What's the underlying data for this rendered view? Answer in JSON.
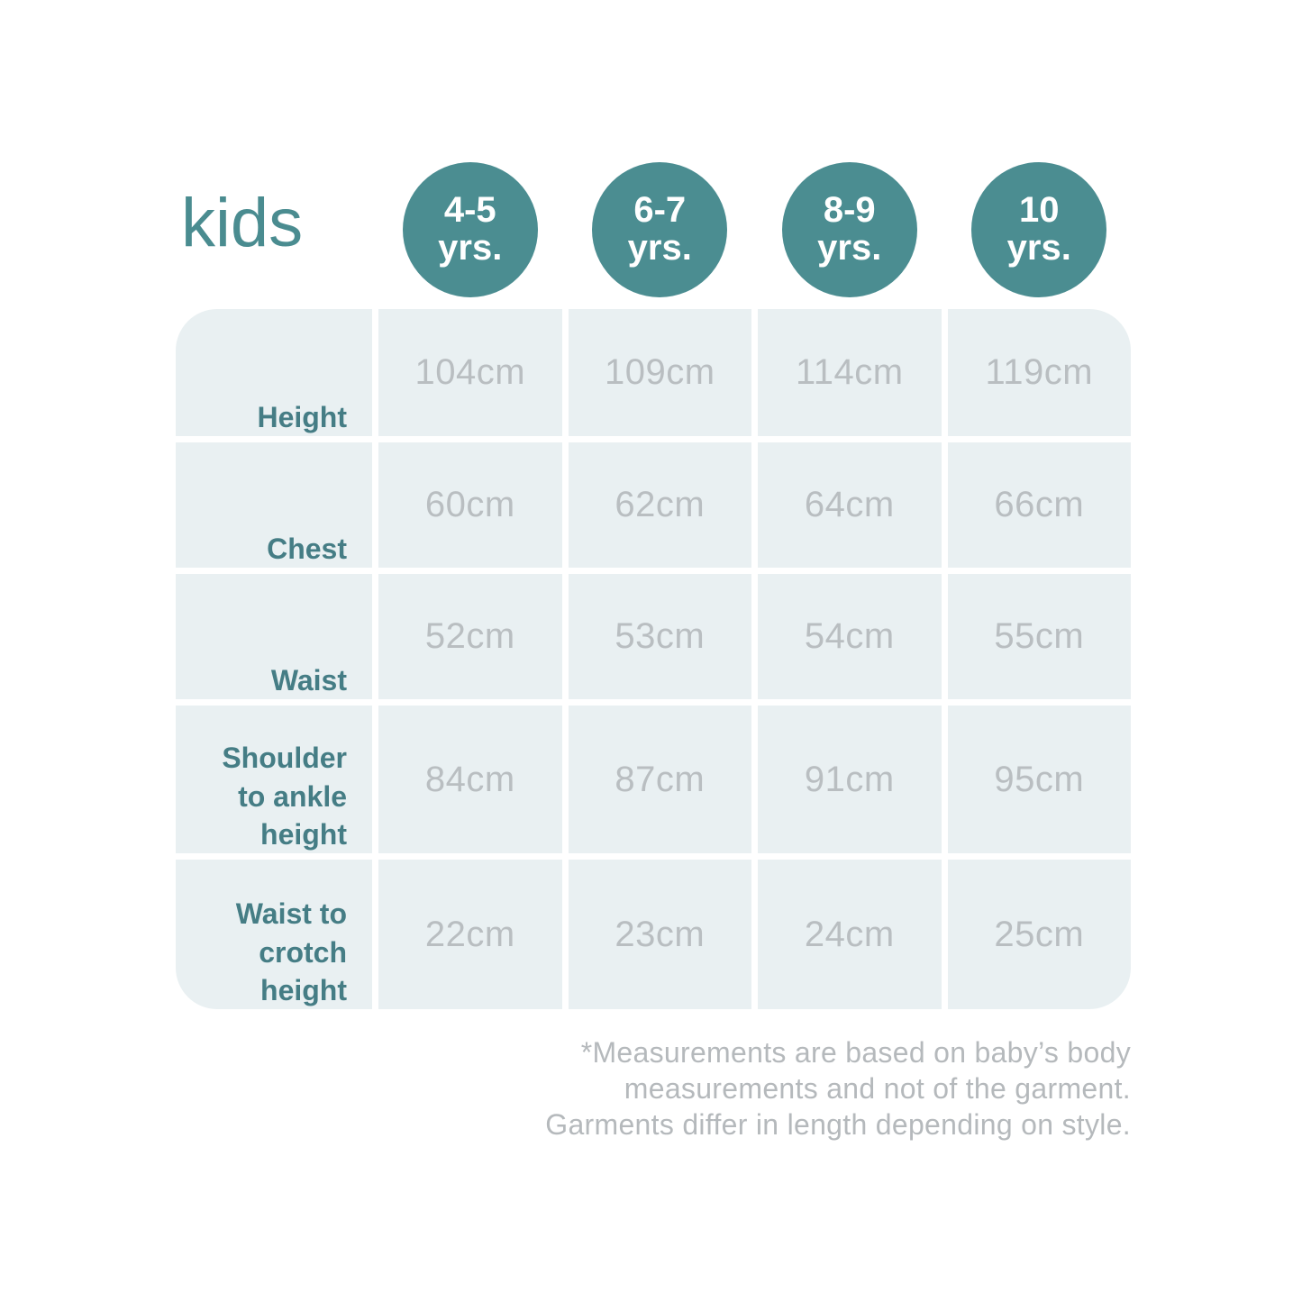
{
  "title": "kids",
  "colors": {
    "accent_teal": "#4b8d91",
    "label_teal": "#457d85",
    "cell_background": "#e9f0f2",
    "value_gray": "#b9bec1",
    "footnote_gray": "#b5b9bc"
  },
  "columns": [
    {
      "age": "4-5",
      "unit": "yrs."
    },
    {
      "age": "6-7",
      "unit": "yrs."
    },
    {
      "age": "8-9",
      "unit": "yrs."
    },
    {
      "age": "10",
      "unit": "yrs."
    }
  ],
  "rows": [
    {
      "label_lines": [
        "Height"
      ],
      "values": [
        "104cm",
        "109cm",
        "114cm",
        "119cm"
      ]
    },
    {
      "label_lines": [
        "Chest"
      ],
      "values": [
        "60cm",
        "62cm",
        "64cm",
        "66cm"
      ]
    },
    {
      "label_lines": [
        "Waist"
      ],
      "values": [
        "52cm",
        "53cm",
        "54cm",
        "55cm"
      ]
    },
    {
      "label_lines": [
        "Shoulder",
        "to ankle",
        "height"
      ],
      "values": [
        "84cm",
        "87cm",
        "91cm",
        "95cm"
      ]
    },
    {
      "label_lines": [
        "Waist to",
        "crotch",
        "height"
      ],
      "values": [
        "22cm",
        "23cm",
        "24cm",
        "25cm"
      ]
    }
  ],
  "footnote": {
    "line1": "*Measurements are based on baby’s body",
    "line2": "measurements and not of the garment.",
    "line3": "Garments differ in length depending on style."
  },
  "chart_data": {
    "type": "table",
    "title": "kids",
    "columns": [
      "4-5 yrs.",
      "6-7 yrs.",
      "8-9 yrs.",
      "10 yrs."
    ],
    "rows": [
      {
        "measurement": "Height",
        "values_cm": [
          104,
          109,
          114,
          119
        ]
      },
      {
        "measurement": "Chest",
        "values_cm": [
          60,
          62,
          64,
          66
        ]
      },
      {
        "measurement": "Waist",
        "values_cm": [
          52,
          53,
          54,
          55
        ]
      },
      {
        "measurement": "Shoulder to ankle height",
        "values_cm": [
          84,
          87,
          91,
          95
        ]
      },
      {
        "measurement": "Waist to crotch height",
        "values_cm": [
          22,
          23,
          24,
          25
        ]
      }
    ],
    "footnote": "*Measurements are based on baby’s body measurements and not of the garment. Garments differ in length depending on style."
  }
}
